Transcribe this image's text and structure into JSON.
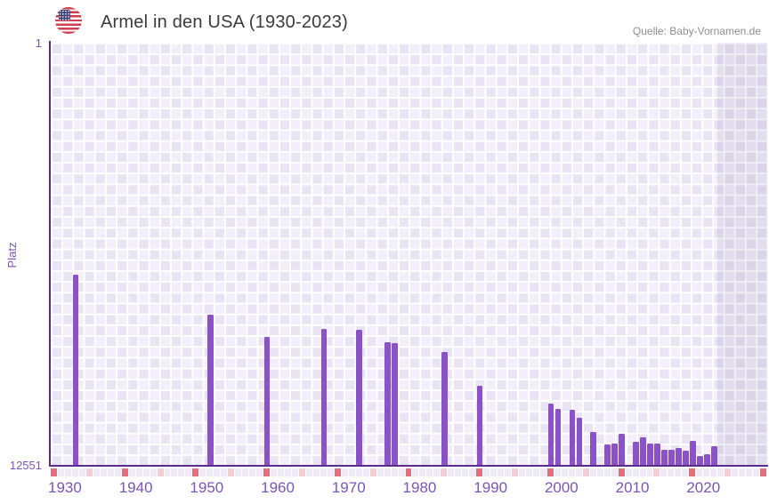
{
  "header": {
    "title": "Armel in den USA (1930-2023)",
    "flag_icon": "usa-flag",
    "source": "Quelle: Baby-Vornamen.de"
  },
  "chart_data": {
    "type": "bar",
    "title": "Armel in den USA (1930-2023)",
    "ylabel": "Platz",
    "y_axis": {
      "top_tick_label": "1",
      "bottom_tick_label": "12551",
      "min": 1,
      "max": 12551,
      "inverted": true
    },
    "x_axis": {
      "domain_start": 1928,
      "domain_end": 2029,
      "tick_labels": [
        "1930",
        "1940",
        "1950",
        "1960",
        "1970",
        "1980",
        "1990",
        "2000",
        "2010",
        "2020"
      ]
    },
    "bars": [
      {
        "year": 1931,
        "rank": 6890
      },
      {
        "year": 1950,
        "rank": 8080
      },
      {
        "year": 1958,
        "rank": 8740
      },
      {
        "year": 1966,
        "rank": 8500
      },
      {
        "year": 1971,
        "rank": 8530
      },
      {
        "year": 1975,
        "rank": 8910
      },
      {
        "year": 1976,
        "rank": 8940
      },
      {
        "year": 1983,
        "rank": 9190
      },
      {
        "year": 1988,
        "rank": 10190
      },
      {
        "year": 1998,
        "rank": 10740
      },
      {
        "year": 1999,
        "rank": 10890
      },
      {
        "year": 2001,
        "rank": 10920
      },
      {
        "year": 2002,
        "rank": 11160
      },
      {
        "year": 2004,
        "rank": 11580
      },
      {
        "year": 2006,
        "rank": 11950
      },
      {
        "year": 2007,
        "rank": 11920
      },
      {
        "year": 2008,
        "rank": 11620
      },
      {
        "year": 2010,
        "rank": 11860
      },
      {
        "year": 2011,
        "rank": 11740
      },
      {
        "year": 2012,
        "rank": 11910
      },
      {
        "year": 2013,
        "rank": 11910
      },
      {
        "year": 2014,
        "rank": 12110
      },
      {
        "year": 2015,
        "rank": 12090
      },
      {
        "year": 2016,
        "rank": 12060
      },
      {
        "year": 2017,
        "rank": 12130
      },
      {
        "year": 2018,
        "rank": 11840
      },
      {
        "year": 2019,
        "rank": 12280
      },
      {
        "year": 2020,
        "rank": 12230
      },
      {
        "year": 2021,
        "rank": 11990
      }
    ],
    "no_data_shade_from_year": 2022,
    "five_year_markers": {
      "dark_years": [
        1928,
        1938,
        1948,
        1958,
        1968,
        1978,
        1988,
        1998,
        2008,
        2018,
        2028
      ],
      "light_years": [
        1933,
        1943,
        1953,
        1963,
        1973,
        1983,
        1993,
        2003,
        2013,
        2023
      ]
    },
    "legend": "none",
    "grid": "checkered-background",
    "colors": {
      "bar": "#8a52c6",
      "axis_line": "#5b2b8e",
      "axis_label": "#7d54b5",
      "plot_cell_light": "#f2eefa",
      "plot_cell_dark": "#e9e4f4",
      "grid_line": "#ffffff",
      "strip_cell": "#eeebf7",
      "marker_dark": "#e0707e",
      "marker_light": "#f4cdd5",
      "shade_overlay": "rgba(93,74,139,0.10)",
      "title_text": "#3b3b3b",
      "source_text": "#8e8e8e"
    }
  }
}
